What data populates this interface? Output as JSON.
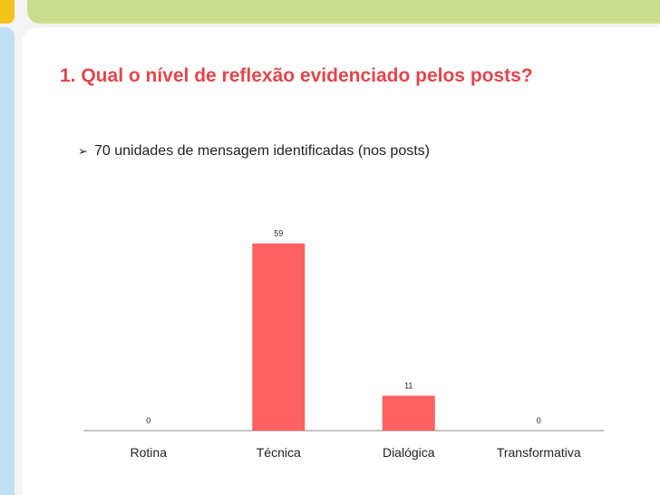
{
  "title": "1. Qual o nível de reflexão evidenciado pelos posts?",
  "bullet": {
    "icon": "arrow-bullet-icon",
    "text": "70 unidades de mensagem identificadas (nos posts)"
  },
  "colors": {
    "title": "#e0474c",
    "bar": "#ff6060",
    "axis": "#888888"
  },
  "chart_data": {
    "type": "bar",
    "categories": [
      "Rotina",
      "Técnica",
      "Dialógica",
      "Transformativa"
    ],
    "values": [
      0,
      59,
      11,
      0
    ],
    "data_labels": [
      "0",
      "59",
      "11",
      "0"
    ],
    "ylim": [
      0,
      70
    ],
    "grid": false,
    "legend": "none"
  }
}
